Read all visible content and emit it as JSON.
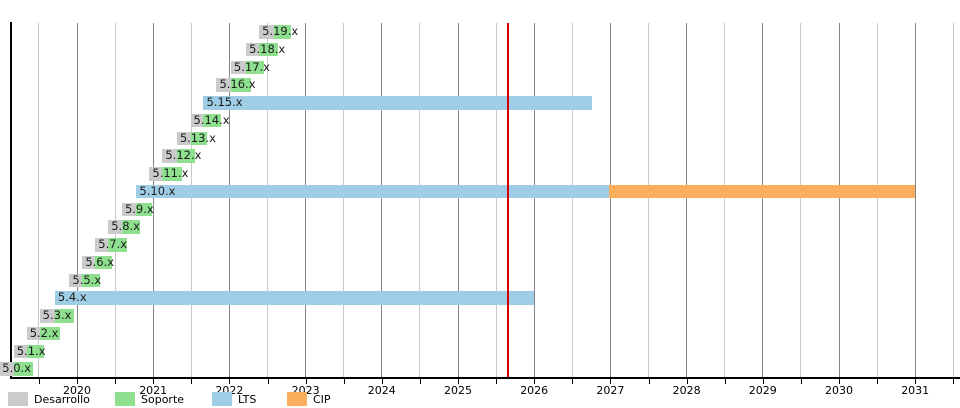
{
  "chart_data": {
    "type": "gantt",
    "description": "Linux kernel 5.x series release support timeline",
    "time_axis": {
      "visible_year_labels": [
        "2020",
        "2021",
        "2022",
        "2023",
        "2024",
        "2025",
        "2026",
        "2027",
        "2028",
        "2029",
        "2030",
        "2031"
      ],
      "gridline_interval_years": 0.5,
      "x_min": 2019.13,
      "x_max": 2031.59
    },
    "current_date_line": {
      "year": 2025.66,
      "color": "#d40000"
    },
    "phases": {
      "desarrollo": "#cbcbcb",
      "soporte": "#8ee08e",
      "lts": "#9ecde5",
      "cip": "#fbaf5d"
    },
    "rows": [
      {
        "label": "5.19.x",
        "segments": [
          {
            "phase": "desarrollo",
            "start": 2022.39,
            "end": 2022.58
          },
          {
            "phase": "soporte",
            "start": 2022.58,
            "end": 2022.81
          }
        ]
      },
      {
        "label": "5.18.x",
        "segments": [
          {
            "phase": "desarrollo",
            "start": 2022.22,
            "end": 2022.39
          },
          {
            "phase": "soporte",
            "start": 2022.39,
            "end": 2022.64
          }
        ]
      },
      {
        "label": "5.17.x",
        "segments": [
          {
            "phase": "desarrollo",
            "start": 2022.02,
            "end": 2022.22
          },
          {
            "phase": "soporte",
            "start": 2022.22,
            "end": 2022.45
          }
        ]
      },
      {
        "label": "5.16.x",
        "segments": [
          {
            "phase": "desarrollo",
            "start": 2021.83,
            "end": 2022.02
          },
          {
            "phase": "soporte",
            "start": 2022.02,
            "end": 2022.28
          }
        ]
      },
      {
        "label": "5.15.x",
        "segments": [
          {
            "phase": "lts",
            "start": 2021.66,
            "end": 2026.76
          }
        ]
      },
      {
        "label": "5.14.x",
        "segments": [
          {
            "phase": "desarrollo",
            "start": 2021.49,
            "end": 2021.66
          },
          {
            "phase": "soporte",
            "start": 2021.66,
            "end": 2021.89
          }
        ]
      },
      {
        "label": "5.13.x",
        "segments": [
          {
            "phase": "desarrollo",
            "start": 2021.31,
            "end": 2021.49
          },
          {
            "phase": "soporte",
            "start": 2021.49,
            "end": 2021.71
          }
        ]
      },
      {
        "label": "5.12.x",
        "segments": [
          {
            "phase": "desarrollo",
            "start": 2021.12,
            "end": 2021.31
          },
          {
            "phase": "soporte",
            "start": 2021.31,
            "end": 2021.55
          }
        ]
      },
      {
        "label": "5.11.x",
        "segments": [
          {
            "phase": "desarrollo",
            "start": 2020.95,
            "end": 2021.12
          },
          {
            "phase": "soporte",
            "start": 2021.12,
            "end": 2021.38
          }
        ]
      },
      {
        "label": "5.10.x",
        "segments": [
          {
            "phase": "lts",
            "start": 2020.78,
            "end": 2026.98
          },
          {
            "phase": "cip",
            "start": 2026.98,
            "end": 2031.0
          }
        ]
      },
      {
        "label": "5.9.x",
        "segments": [
          {
            "phase": "desarrollo",
            "start": 2020.59,
            "end": 2020.78
          },
          {
            "phase": "soporte",
            "start": 2020.78,
            "end": 2020.99
          }
        ]
      },
      {
        "label": "5.8.x",
        "segments": [
          {
            "phase": "desarrollo",
            "start": 2020.41,
            "end": 2020.59
          },
          {
            "phase": "soporte",
            "start": 2020.59,
            "end": 2020.83
          }
        ]
      },
      {
        "label": "5.7.x",
        "segments": [
          {
            "phase": "desarrollo",
            "start": 2020.24,
            "end": 2020.41
          },
          {
            "phase": "soporte",
            "start": 2020.41,
            "end": 2020.65
          }
        ]
      },
      {
        "label": "5.6.x",
        "segments": [
          {
            "phase": "desarrollo",
            "start": 2020.07,
            "end": 2020.24
          },
          {
            "phase": "soporte",
            "start": 2020.24,
            "end": 2020.46
          }
        ]
      },
      {
        "label": "5.5.x",
        "segments": [
          {
            "phase": "desarrollo",
            "start": 2019.9,
            "end": 2020.07
          },
          {
            "phase": "soporte",
            "start": 2020.07,
            "end": 2020.3
          }
        ]
      },
      {
        "label": "5.4.x",
        "segments": [
          {
            "phase": "lts",
            "start": 2019.71,
            "end": 2026.0
          }
        ]
      },
      {
        "label": "5.3.x",
        "segments": [
          {
            "phase": "desarrollo",
            "start": 2019.51,
            "end": 2019.71
          },
          {
            "phase": "soporte",
            "start": 2019.71,
            "end": 2019.96
          }
        ]
      },
      {
        "label": "5.2.x",
        "segments": [
          {
            "phase": "desarrollo",
            "start": 2019.34,
            "end": 2019.51
          },
          {
            "phase": "soporte",
            "start": 2019.51,
            "end": 2019.78
          }
        ]
      },
      {
        "label": "5.1.x",
        "segments": [
          {
            "phase": "desarrollo",
            "start": 2019.17,
            "end": 2019.34
          },
          {
            "phase": "soporte",
            "start": 2019.34,
            "end": 2019.57
          }
        ]
      },
      {
        "label": "5.0.x",
        "segments": [
          {
            "phase": "desarrollo",
            "start": 2018.98,
            "end": 2019.17
          },
          {
            "phase": "soporte",
            "start": 2019.17,
            "end": 2019.42
          }
        ]
      }
    ]
  },
  "legend": {
    "items": [
      {
        "label": "Desarrollo",
        "phase": "desarrollo"
      },
      {
        "label": "Soporte",
        "phase": "soporte"
      },
      {
        "label": "LTS",
        "phase": "lts"
      },
      {
        "label": "CIP",
        "phase": "cip"
      }
    ]
  }
}
